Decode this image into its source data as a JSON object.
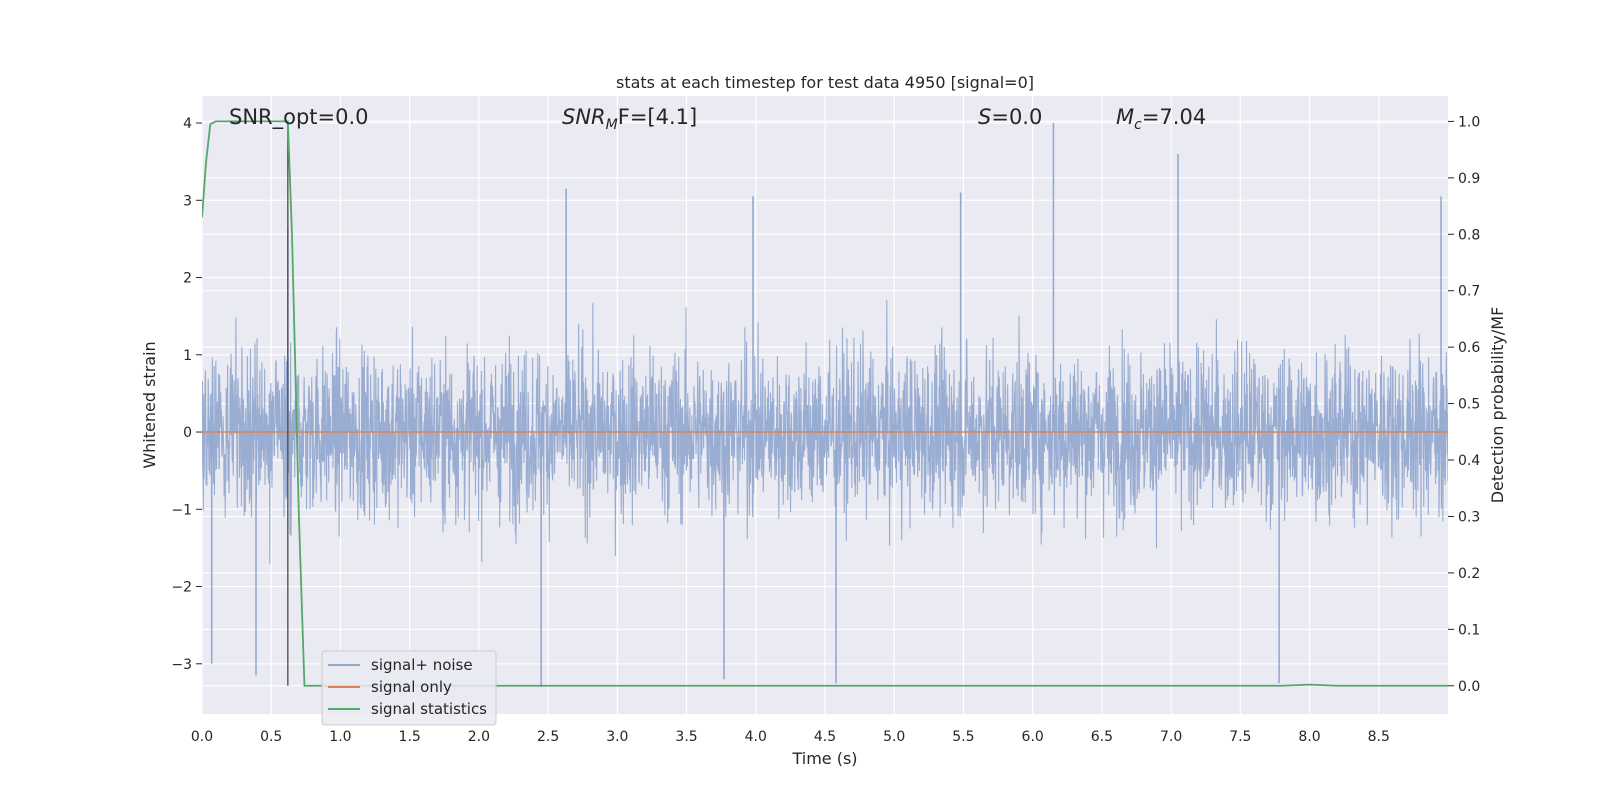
{
  "chart_data": {
    "type": "line",
    "title": "stats at each timestep for test data 4950 [signal=0]",
    "xlabel": "Time (s)",
    "ylabel": "Whitened strain",
    "ylabel_right": "Detection probability/MF",
    "xlim": [
      0,
      9.0
    ],
    "ylim": [
      -3.65,
      4.35
    ],
    "ylim_right": [
      -0.05,
      1.045
    ],
    "xticks": [
      "0.0",
      "0.5",
      "1.0",
      "1.5",
      "2.0",
      "2.5",
      "3.0",
      "3.5",
      "4.0",
      "4.5",
      "5.0",
      "5.5",
      "6.0",
      "6.5",
      "7.0",
      "7.5",
      "8.0",
      "8.5"
    ],
    "yticks_left": [
      "−3",
      "−2",
      "−1",
      "0",
      "1",
      "2",
      "3",
      "4"
    ],
    "yticks_right": [
      "0.0",
      "0.1",
      "0.2",
      "0.3",
      "0.4",
      "0.5",
      "0.6",
      "0.7",
      "0.8",
      "0.9",
      "1.0"
    ],
    "grid": true,
    "legend_placement": "lower-left",
    "annotations": {
      "snr_opt": "SNR_opt=0.0",
      "snr_mf_base": "SNR",
      "snr_mf_sub": "M",
      "snr_mf_value": "F=[4.1]",
      "s_label": "S",
      "s_value": "=0.0",
      "mc_base": "M",
      "mc_sub": "c",
      "mc_value": "=7.04"
    },
    "marker_line_x": 0.62,
    "series": [
      {
        "name": "signal+ noise",
        "color": "#95a9cf",
        "description": "whitened noise, approx. uniform amplitude",
        "band": {
          "upper_typical": 1.5,
          "lower_typical": -1.5
        },
        "peaks": [
          {
            "x": 6.15,
            "y": 4.0
          },
          {
            "x": 7.05,
            "y": 3.6
          },
          {
            "x": 5.48,
            "y": 3.1
          },
          {
            "x": 2.63,
            "y": 3.15
          },
          {
            "x": 3.98,
            "y": 3.05
          },
          {
            "x": 8.95,
            "y": 3.05
          },
          {
            "x": 0.62,
            "y": 2.65
          },
          {
            "x": 2.45,
            "y": -3.3
          },
          {
            "x": 4.58,
            "y": -3.25
          },
          {
            "x": 7.78,
            "y": -3.25
          },
          {
            "x": 3.77,
            "y": -3.2
          },
          {
            "x": 0.07,
            "y": -3.0
          },
          {
            "x": 0.39,
            "y": -3.15
          }
        ]
      },
      {
        "name": "signal only",
        "color": "#dd8452",
        "x": [
          0,
          9.0
        ],
        "y": [
          0,
          0
        ]
      },
      {
        "name": "signal statistics",
        "color": "#55a868",
        "axis": "right",
        "x": [
          0.0,
          0.03,
          0.06,
          0.1,
          0.15,
          0.3,
          0.5,
          0.6,
          0.62,
          0.65,
          0.7,
          0.74,
          0.8,
          1.5,
          3.0,
          5.0,
          7.0,
          7.8,
          8.0,
          8.2,
          9.0
        ],
        "y": [
          0.83,
          0.93,
          0.995,
          1.0,
          1.0,
          1.0,
          1.0,
          1.0,
          1.0,
          0.8,
          0.3,
          0.0,
          0.0,
          0.0,
          0.0,
          0.0,
          0.0,
          0.0,
          0.002,
          0.0,
          0.0
        ]
      }
    ]
  }
}
